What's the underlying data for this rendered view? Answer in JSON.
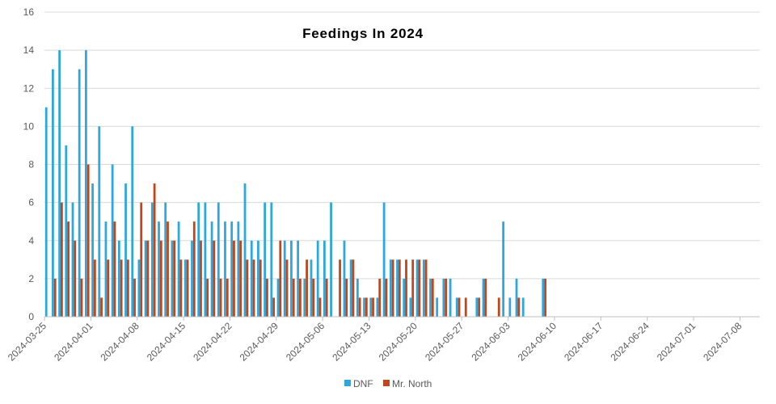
{
  "chart_data": {
    "type": "bar",
    "title": "Feedings In 2024",
    "xlabel": "",
    "ylabel": "",
    "ylim": [
      0,
      16
    ],
    "yticks": [
      0,
      2,
      4,
      6,
      8,
      10,
      12,
      14,
      16
    ],
    "xlim": [
      "2024-03-25",
      "2024-07-11"
    ],
    "xticks": [
      "2024-03-25",
      "2024-04-01",
      "2024-04-08",
      "2024-04-15",
      "2024-04-22",
      "2024-04-29",
      "2024-05-06",
      "2024-05-13",
      "2024-05-20",
      "2024-05-27",
      "2024-06-03",
      "2024-06-10",
      "2024-06-17",
      "2024-06-24",
      "2024-07-01",
      "2024-07-08"
    ],
    "grid": "horizontal",
    "legend_position": "bottom",
    "colors": {
      "DNF": "#2ea7dc",
      "Mr. North": "#c0461b",
      "grid": "#d9d9d9",
      "axis": "#bfbfbf",
      "text": "#595959",
      "title": "#000000"
    },
    "series": [
      {
        "name": "DNF",
        "points": [
          {
            "x": "2024-03-25",
            "y": 11
          },
          {
            "x": "2024-03-26",
            "y": 13
          },
          {
            "x": "2024-03-27",
            "y": 14
          },
          {
            "x": "2024-03-28",
            "y": 9
          },
          {
            "x": "2024-03-29",
            "y": 6
          },
          {
            "x": "2024-03-30",
            "y": 13
          },
          {
            "x": "2024-03-31",
            "y": 14
          },
          {
            "x": "2024-04-01",
            "y": 7
          },
          {
            "x": "2024-04-02",
            "y": 10
          },
          {
            "x": "2024-04-03",
            "y": 5
          },
          {
            "x": "2024-04-04",
            "y": 8
          },
          {
            "x": "2024-04-05",
            "y": 4
          },
          {
            "x": "2024-04-06",
            "y": 7
          },
          {
            "x": "2024-04-07",
            "y": 10
          },
          {
            "x": "2024-04-08",
            "y": 3
          },
          {
            "x": "2024-04-09",
            "y": 4
          },
          {
            "x": "2024-04-10",
            "y": 6
          },
          {
            "x": "2024-04-11",
            "y": 5
          },
          {
            "x": "2024-04-12",
            "y": 6
          },
          {
            "x": "2024-04-13",
            "y": 4
          },
          {
            "x": "2024-04-14",
            "y": 5
          },
          {
            "x": "2024-04-15",
            "y": 3
          },
          {
            "x": "2024-04-16",
            "y": 4
          },
          {
            "x": "2024-04-17",
            "y": 6
          },
          {
            "x": "2024-04-18",
            "y": 6
          },
          {
            "x": "2024-04-19",
            "y": 5
          },
          {
            "x": "2024-04-20",
            "y": 6
          },
          {
            "x": "2024-04-21",
            "y": 5
          },
          {
            "x": "2024-04-22",
            "y": 5
          },
          {
            "x": "2024-04-23",
            "y": 5
          },
          {
            "x": "2024-04-24",
            "y": 7
          },
          {
            "x": "2024-04-25",
            "y": 4
          },
          {
            "x": "2024-04-26",
            "y": 4
          },
          {
            "x": "2024-04-27",
            "y": 6
          },
          {
            "x": "2024-04-28",
            "y": 6
          },
          {
            "x": "2024-04-29",
            "y": 2
          },
          {
            "x": "2024-04-30",
            "y": 4
          },
          {
            "x": "2024-05-01",
            "y": 4
          },
          {
            "x": "2024-05-02",
            "y": 4
          },
          {
            "x": "2024-05-03",
            "y": 2
          },
          {
            "x": "2024-05-04",
            "y": 3
          },
          {
            "x": "2024-05-05",
            "y": 4
          },
          {
            "x": "2024-05-06",
            "y": 4
          },
          {
            "x": "2024-05-07",
            "y": 6
          },
          {
            "x": "2024-05-09",
            "y": 4
          },
          {
            "x": "2024-05-10",
            "y": 3
          },
          {
            "x": "2024-05-11",
            "y": 2
          },
          {
            "x": "2024-05-12",
            "y": 1
          },
          {
            "x": "2024-05-13",
            "y": 1
          },
          {
            "x": "2024-05-14",
            "y": 1
          },
          {
            "x": "2024-05-15",
            "y": 6
          },
          {
            "x": "2024-05-16",
            "y": 3
          },
          {
            "x": "2024-05-17",
            "y": 3
          },
          {
            "x": "2024-05-18",
            "y": 2
          },
          {
            "x": "2024-05-19",
            "y": 1
          },
          {
            "x": "2024-05-20",
            "y": 3
          },
          {
            "x": "2024-05-21",
            "y": 3
          },
          {
            "x": "2024-05-22",
            "y": 2
          },
          {
            "x": "2024-05-23",
            "y": 1
          },
          {
            "x": "2024-05-24",
            "y": 2
          },
          {
            "x": "2024-05-25",
            "y": 2
          },
          {
            "x": "2024-05-26",
            "y": 1
          },
          {
            "x": "2024-05-29",
            "y": 1
          },
          {
            "x": "2024-05-30",
            "y": 2
          },
          {
            "x": "2024-06-02",
            "y": 5
          },
          {
            "x": "2024-06-03",
            "y": 1
          },
          {
            "x": "2024-06-04",
            "y": 2
          },
          {
            "x": "2024-06-05",
            "y": 1
          },
          {
            "x": "2024-06-08",
            "y": 2
          }
        ]
      },
      {
        "name": "Mr. North",
        "points": [
          {
            "x": "2024-03-26",
            "y": 2
          },
          {
            "x": "2024-03-27",
            "y": 6
          },
          {
            "x": "2024-03-28",
            "y": 5
          },
          {
            "x": "2024-03-29",
            "y": 4
          },
          {
            "x": "2024-03-30",
            "y": 2
          },
          {
            "x": "2024-03-31",
            "y": 8
          },
          {
            "x": "2024-04-01",
            "y": 3
          },
          {
            "x": "2024-04-02",
            "y": 1
          },
          {
            "x": "2024-04-03",
            "y": 3
          },
          {
            "x": "2024-04-04",
            "y": 5
          },
          {
            "x": "2024-04-05",
            "y": 3
          },
          {
            "x": "2024-04-06",
            "y": 3
          },
          {
            "x": "2024-04-07",
            "y": 2
          },
          {
            "x": "2024-04-08",
            "y": 6
          },
          {
            "x": "2024-04-09",
            "y": 4
          },
          {
            "x": "2024-04-10",
            "y": 7
          },
          {
            "x": "2024-04-11",
            "y": 4
          },
          {
            "x": "2024-04-12",
            "y": 5
          },
          {
            "x": "2024-04-13",
            "y": 4
          },
          {
            "x": "2024-04-14",
            "y": 3
          },
          {
            "x": "2024-04-15",
            "y": 3
          },
          {
            "x": "2024-04-16",
            "y": 5
          },
          {
            "x": "2024-04-17",
            "y": 4
          },
          {
            "x": "2024-04-18",
            "y": 2
          },
          {
            "x": "2024-04-19",
            "y": 4
          },
          {
            "x": "2024-04-20",
            "y": 2
          },
          {
            "x": "2024-04-21",
            "y": 2
          },
          {
            "x": "2024-04-22",
            "y": 4
          },
          {
            "x": "2024-04-23",
            "y": 4
          },
          {
            "x": "2024-04-24",
            "y": 3
          },
          {
            "x": "2024-04-25",
            "y": 3
          },
          {
            "x": "2024-04-26",
            "y": 3
          },
          {
            "x": "2024-04-27",
            "y": 2
          },
          {
            "x": "2024-04-28",
            "y": 1
          },
          {
            "x": "2024-04-29",
            "y": 4
          },
          {
            "x": "2024-04-30",
            "y": 3
          },
          {
            "x": "2024-05-01",
            "y": 2
          },
          {
            "x": "2024-05-02",
            "y": 2
          },
          {
            "x": "2024-05-03",
            "y": 3
          },
          {
            "x": "2024-05-04",
            "y": 2
          },
          {
            "x": "2024-05-05",
            "y": 1
          },
          {
            "x": "2024-05-06",
            "y": 2
          },
          {
            "x": "2024-05-08",
            "y": 3
          },
          {
            "x": "2024-05-09",
            "y": 2
          },
          {
            "x": "2024-05-10",
            "y": 3
          },
          {
            "x": "2024-05-11",
            "y": 1
          },
          {
            "x": "2024-05-12",
            "y": 1
          },
          {
            "x": "2024-05-13",
            "y": 1
          },
          {
            "x": "2024-05-14",
            "y": 2
          },
          {
            "x": "2024-05-15",
            "y": 2
          },
          {
            "x": "2024-05-16",
            "y": 3
          },
          {
            "x": "2024-05-17",
            "y": 3
          },
          {
            "x": "2024-05-18",
            "y": 3
          },
          {
            "x": "2024-05-19",
            "y": 3
          },
          {
            "x": "2024-05-20",
            "y": 3
          },
          {
            "x": "2024-05-21",
            "y": 3
          },
          {
            "x": "2024-05-22",
            "y": 2
          },
          {
            "x": "2024-05-24",
            "y": 2
          },
          {
            "x": "2024-05-26",
            "y": 1
          },
          {
            "x": "2024-05-27",
            "y": 1
          },
          {
            "x": "2024-05-29",
            "y": 1
          },
          {
            "x": "2024-05-30",
            "y": 2
          },
          {
            "x": "2024-06-01",
            "y": 1
          },
          {
            "x": "2024-06-04",
            "y": 1
          },
          {
            "x": "2024-06-08",
            "y": 2
          }
        ]
      }
    ]
  }
}
